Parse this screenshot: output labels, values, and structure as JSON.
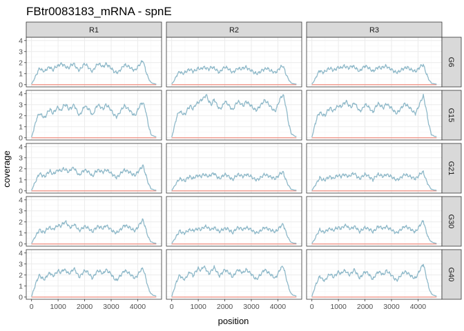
{
  "chart_data": {
    "type": "line",
    "title": "FBtr0083183_mRNA - spnE",
    "xlabel": "position",
    "ylabel": "coverage",
    "xlim": [
      0,
      4800
    ],
    "ylim": [
      0,
      4
    ],
    "x_ticks": [
      0,
      1000,
      2000,
      3000,
      4000
    ],
    "y_ticks": [
      0,
      1,
      2,
      3,
      4
    ],
    "columns": [
      "R1",
      "R2",
      "R3"
    ],
    "rows": [
      "G6",
      "G15",
      "G21",
      "G30",
      "G40"
    ],
    "grid": true,
    "legend": "none",
    "colors": {
      "series_main": "#8fb9c9",
      "series_baseline": "#f08070",
      "strip_fill": "#d9d9d9",
      "panel_border": "#333333",
      "grid_major": "#ebebeb",
      "grid_minor": "#f5f5f5"
    },
    "x": [
      0,
      100,
      200,
      300,
      400,
      500,
      600,
      700,
      800,
      900,
      1000,
      1100,
      1200,
      1300,
      1400,
      1500,
      1600,
      1700,
      1800,
      1900,
      2000,
      2100,
      2200,
      2300,
      2400,
      2500,
      2600,
      2700,
      2800,
      2900,
      3000,
      3100,
      3200,
      3300,
      3400,
      3500,
      3600,
      3700,
      3800,
      3900,
      4000,
      4100,
      4200,
      4300,
      4400,
      4500,
      4600,
      4700
    ],
    "baseline": 0,
    "panels": [
      {
        "row": "G6",
        "col": "R1",
        "values": [
          0.05,
          0.5,
          1.0,
          1.5,
          1.3,
          1.2,
          1.5,
          1.6,
          1.3,
          1.6,
          1.7,
          1.9,
          1.8,
          1.6,
          1.5,
          1.8,
          1.9,
          1.5,
          1.3,
          1.6,
          1.9,
          1.7,
          1.4,
          1.2,
          1.6,
          1.9,
          1.8,
          1.6,
          1.9,
          1.7,
          1.5,
          1.2,
          1.1,
          1.2,
          1.5,
          1.8,
          1.7,
          1.6,
          1.4,
          1.3,
          1.6,
          1.9,
          2.2,
          1.3,
          0.6,
          0.2,
          0.1,
          0.05
        ]
      },
      {
        "row": "G6",
        "col": "R2",
        "values": [
          0.05,
          0.4,
          0.9,
          1.2,
          1.0,
          1.1,
          1.3,
          1.4,
          1.2,
          1.3,
          1.5,
          1.4,
          1.6,
          1.5,
          1.4,
          1.6,
          1.5,
          1.3,
          1.1,
          1.4,
          1.6,
          1.5,
          1.3,
          1.1,
          1.3,
          1.5,
          1.4,
          1.5,
          1.6,
          1.4,
          1.3,
          1.1,
          1.0,
          1.1,
          1.3,
          1.4,
          1.5,
          1.3,
          1.2,
          1.1,
          1.3,
          1.6,
          1.7,
          1.0,
          0.5,
          0.15,
          0.08,
          0.05
        ]
      },
      {
        "row": "G6",
        "col": "R3",
        "values": [
          0.05,
          0.4,
          0.9,
          1.3,
          1.1,
          1.2,
          1.4,
          1.5,
          1.3,
          1.4,
          1.6,
          1.5,
          1.7,
          1.6,
          1.5,
          1.7,
          1.6,
          1.4,
          1.2,
          1.5,
          1.7,
          1.6,
          1.4,
          1.2,
          1.4,
          1.6,
          1.5,
          1.6,
          1.7,
          1.5,
          1.4,
          1.2,
          1.1,
          1.2,
          1.4,
          1.5,
          1.6,
          1.4,
          1.3,
          1.2,
          1.4,
          1.7,
          1.8,
          1.1,
          0.5,
          0.15,
          0.08,
          0.05
        ]
      },
      {
        "row": "G15",
        "col": "R1",
        "values": [
          0.05,
          0.9,
          1.8,
          2.2,
          2.0,
          1.8,
          2.3,
          2.6,
          2.2,
          2.5,
          2.8,
          2.4,
          2.9,
          3.0,
          2.6,
          2.7,
          3.0,
          2.5,
          2.0,
          2.4,
          2.9,
          2.7,
          2.5,
          2.0,
          2.6,
          3.0,
          2.8,
          2.6,
          3.0,
          2.8,
          2.5,
          2.1,
          1.9,
          2.2,
          2.6,
          2.9,
          2.7,
          2.5,
          2.2,
          2.0,
          2.5,
          3.0,
          3.2,
          2.5,
          1.2,
          0.3,
          0.15,
          0.1
        ]
      },
      {
        "row": "G15",
        "col": "R2",
        "values": [
          0.05,
          1.0,
          2.0,
          2.4,
          2.2,
          2.1,
          2.6,
          2.9,
          2.6,
          3.0,
          3.2,
          3.4,
          3.6,
          3.9,
          3.3,
          3.0,
          3.5,
          3.0,
          2.6,
          2.8,
          3.3,
          3.1,
          2.8,
          2.5,
          3.0,
          3.3,
          3.1,
          2.9,
          3.3,
          3.1,
          2.9,
          2.6,
          2.5,
          2.8,
          3.1,
          3.4,
          3.2,
          2.9,
          2.6,
          2.4,
          3.0,
          3.6,
          3.9,
          2.9,
          1.4,
          0.4,
          0.2,
          0.1
        ]
      },
      {
        "row": "G15",
        "col": "R3",
        "values": [
          0.05,
          1.0,
          1.9,
          2.3,
          2.1,
          2.0,
          2.5,
          2.7,
          2.4,
          2.7,
          2.9,
          2.8,
          3.1,
          3.3,
          2.9,
          2.8,
          3.2,
          2.8,
          2.4,
          2.6,
          3.0,
          2.9,
          2.6,
          2.3,
          2.8,
          3.1,
          2.9,
          2.7,
          3.1,
          2.9,
          2.7,
          2.4,
          2.2,
          2.5,
          2.8,
          3.1,
          2.9,
          2.7,
          2.4,
          2.2,
          2.7,
          3.3,
          3.8,
          2.7,
          1.3,
          0.3,
          0.15,
          0.1
        ]
      },
      {
        "row": "G21",
        "col": "R1",
        "values": [
          0.05,
          0.6,
          1.1,
          1.6,
          1.4,
          1.3,
          1.6,
          1.8,
          1.5,
          1.7,
          1.9,
          1.8,
          2.0,
          1.9,
          1.7,
          2.0,
          2.1,
          1.7,
          1.4,
          1.7,
          1.9,
          1.8,
          1.6,
          1.3,
          1.7,
          1.9,
          1.8,
          1.7,
          1.9,
          1.8,
          1.6,
          1.4,
          1.2,
          1.4,
          1.7,
          1.9,
          1.8,
          1.7,
          1.5,
          1.4,
          1.7,
          2.0,
          2.3,
          1.5,
          0.7,
          0.2,
          0.1,
          0.05
        ]
      },
      {
        "row": "G21",
        "col": "R2",
        "values": [
          0.05,
          0.4,
          0.8,
          1.1,
          1.0,
          0.9,
          1.2,
          1.3,
          1.1,
          1.3,
          1.4,
          1.3,
          1.5,
          1.4,
          1.3,
          1.5,
          1.6,
          1.3,
          1.1,
          1.3,
          1.5,
          1.4,
          1.2,
          1.0,
          1.3,
          1.5,
          1.4,
          1.3,
          1.5,
          1.4,
          1.3,
          1.1,
          1.0,
          1.1,
          1.3,
          1.5,
          1.4,
          1.3,
          1.2,
          1.1,
          1.3,
          1.6,
          1.7,
          1.0,
          0.5,
          0.15,
          0.08,
          0.05
        ]
      },
      {
        "row": "G21",
        "col": "R3",
        "values": [
          0.05,
          0.4,
          0.8,
          1.2,
          1.0,
          1.0,
          1.2,
          1.3,
          1.1,
          1.3,
          1.4,
          1.3,
          1.5,
          1.4,
          1.3,
          1.5,
          1.6,
          1.3,
          1.1,
          1.3,
          1.5,
          1.4,
          1.2,
          1.0,
          1.3,
          1.5,
          1.4,
          1.3,
          1.5,
          1.4,
          1.3,
          1.1,
          1.0,
          1.1,
          1.3,
          1.5,
          1.4,
          1.3,
          1.2,
          1.1,
          1.3,
          1.6,
          1.7,
          1.0,
          0.5,
          0.15,
          0.08,
          0.05
        ]
      },
      {
        "row": "G30",
        "col": "R1",
        "values": [
          0.05,
          0.5,
          0.9,
          1.3,
          1.1,
          1.1,
          1.4,
          1.5,
          1.3,
          1.5,
          1.7,
          1.6,
          1.9,
          2.0,
          1.6,
          1.5,
          1.8,
          1.5,
          1.2,
          1.4,
          1.6,
          1.5,
          1.3,
          1.1,
          1.4,
          1.6,
          1.5,
          1.4,
          1.7,
          1.5,
          1.3,
          1.1,
          1.0,
          1.2,
          1.4,
          1.7,
          1.6,
          1.5,
          1.3,
          1.2,
          1.5,
          1.9,
          2.2,
          1.4,
          0.6,
          0.2,
          0.1,
          0.05
        ]
      },
      {
        "row": "G30",
        "col": "R2",
        "values": [
          0.05,
          0.4,
          0.8,
          1.2,
          1.0,
          1.0,
          1.2,
          1.3,
          1.2,
          1.3,
          1.4,
          1.3,
          1.5,
          1.6,
          1.4,
          1.3,
          1.5,
          1.3,
          1.1,
          1.3,
          1.4,
          1.4,
          1.2,
          1.0,
          1.3,
          1.5,
          1.4,
          1.3,
          1.5,
          1.4,
          1.3,
          1.1,
          1.0,
          1.1,
          1.3,
          1.5,
          1.4,
          1.3,
          1.2,
          1.1,
          1.3,
          1.6,
          1.8,
          1.1,
          0.5,
          0.15,
          0.08,
          0.05
        ]
      },
      {
        "row": "G30",
        "col": "R3",
        "values": [
          0.05,
          0.4,
          0.9,
          1.3,
          1.1,
          1.1,
          1.3,
          1.4,
          1.2,
          1.4,
          1.5,
          1.4,
          1.6,
          1.7,
          1.4,
          1.4,
          1.6,
          1.4,
          1.1,
          1.3,
          1.5,
          1.4,
          1.3,
          1.1,
          1.3,
          1.6,
          1.5,
          1.4,
          1.6,
          1.4,
          1.3,
          1.1,
          1.0,
          1.2,
          1.4,
          1.6,
          1.5,
          1.4,
          1.2,
          1.1,
          1.4,
          1.8,
          2.1,
          1.2,
          0.5,
          0.2,
          0.1,
          0.05
        ]
      },
      {
        "row": "G40",
        "col": "R1",
        "values": [
          0.05,
          0.8,
          1.5,
          2.0,
          1.7,
          1.6,
          2.0,
          2.2,
          1.9,
          2.1,
          2.4,
          2.2,
          2.5,
          2.4,
          2.1,
          2.3,
          2.6,
          2.2,
          1.8,
          2.1,
          2.4,
          2.3,
          2.0,
          1.7,
          2.1,
          2.4,
          2.3,
          2.1,
          2.5,
          2.3,
          2.1,
          1.7,
          1.5,
          1.8,
          2.1,
          2.4,
          2.3,
          2.1,
          1.9,
          1.7,
          2.0,
          2.4,
          2.6,
          1.8,
          0.8,
          0.3,
          0.15,
          0.1
        ]
      },
      {
        "row": "G40",
        "col": "R2",
        "values": [
          0.05,
          0.8,
          1.5,
          2.0,
          1.7,
          1.6,
          2.0,
          2.3,
          1.9,
          2.3,
          2.6,
          2.4,
          2.8,
          2.5,
          2.1,
          2.4,
          2.7,
          2.3,
          1.9,
          2.2,
          2.5,
          2.3,
          2.1,
          1.8,
          2.2,
          2.5,
          2.3,
          2.2,
          2.5,
          2.3,
          2.1,
          1.8,
          1.6,
          1.9,
          2.2,
          2.5,
          2.3,
          2.1,
          1.9,
          1.7,
          2.1,
          2.6,
          2.8,
          1.9,
          0.9,
          0.3,
          0.15,
          0.1
        ]
      },
      {
        "row": "G40",
        "col": "R3",
        "values": [
          0.05,
          0.8,
          1.4,
          1.9,
          1.6,
          1.5,
          1.9,
          2.1,
          1.8,
          2.0,
          2.3,
          2.1,
          2.4,
          2.3,
          2.0,
          2.2,
          2.5,
          2.1,
          1.7,
          2.0,
          2.3,
          2.2,
          1.9,
          1.6,
          2.0,
          2.3,
          2.2,
          2.0,
          2.4,
          2.2,
          2.0,
          1.7,
          1.5,
          1.8,
          2.1,
          2.3,
          2.2,
          2.0,
          1.8,
          1.7,
          2.1,
          2.6,
          3.0,
          2.0,
          0.9,
          0.3,
          0.15,
          0.1
        ]
      }
    ]
  }
}
